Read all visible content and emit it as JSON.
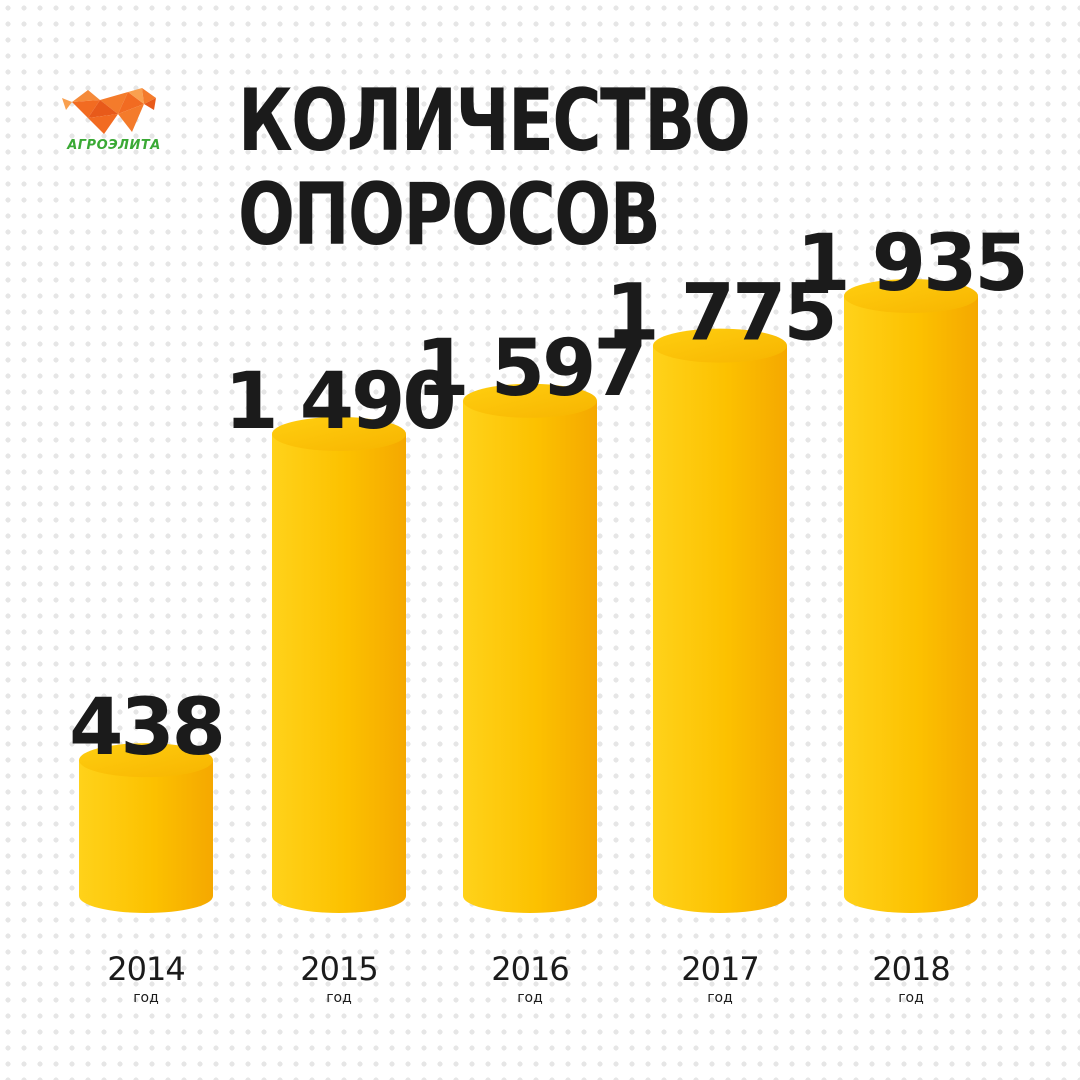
{
  "brand": {
    "name": "АГРОЭЛИТА",
    "logo_icon": "origami-pig-icon"
  },
  "title_lines": [
    "КОЛИЧЕСТВО",
    "ОПОРОСОВ"
  ],
  "colors": {
    "bar_light": "#ffd21a",
    "bar_dark": "#f5a800",
    "text": "#1b1b1b",
    "brand_green": "#3aa935",
    "brand_orange": "#f26b21"
  },
  "chart_data": {
    "type": "bar",
    "categories": [
      "2014",
      "2015",
      "2016",
      "2017",
      "2018"
    ],
    "category_unit": "год",
    "values": [
      438,
      1490,
      1597,
      1775,
      1935
    ],
    "value_labels": [
      "438",
      "1 490",
      "1 597",
      "1 775",
      "1 935"
    ],
    "title": "КОЛИЧЕСТВО ОПОРОСОВ",
    "xlabel": "",
    "ylabel": "",
    "grid": false,
    "legend": "none"
  }
}
